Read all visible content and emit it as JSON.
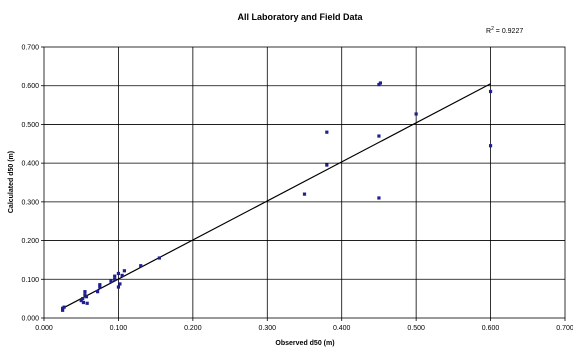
{
  "chart_data": {
    "type": "scatter",
    "title": "All Laboratory and Field Data",
    "xlabel": "Observed d50 (m)",
    "ylabel": "Calculated d50 (m)",
    "xlim": [
      0,
      0.7
    ],
    "ylim": [
      0,
      0.7
    ],
    "x_ticks": [
      "0.000",
      "0.100",
      "0.200",
      "0.300",
      "0.400",
      "0.500",
      "0.600",
      "0.700"
    ],
    "y_ticks": [
      "0.000",
      "0.100",
      "0.200",
      "0.300",
      "0.400",
      "0.500",
      "0.600",
      "0.700"
    ],
    "grid": true,
    "r_squared_label": {
      "prefix": "R",
      "sup": "2",
      "value": " = 0.9227"
    },
    "trendline": {
      "x": [
        0.025,
        0.6
      ],
      "y": [
        0.025,
        0.605
      ]
    },
    "point_color": "#1f1f8f",
    "points": [
      {
        "x": 0.025,
        "y": 0.02
      },
      {
        "x": 0.025,
        "y": 0.025
      },
      {
        "x": 0.027,
        "y": 0.028
      },
      {
        "x": 0.05,
        "y": 0.045
      },
      {
        "x": 0.052,
        "y": 0.05
      },
      {
        "x": 0.053,
        "y": 0.04
      },
      {
        "x": 0.055,
        "y": 0.06
      },
      {
        "x": 0.055,
        "y": 0.068
      },
      {
        "x": 0.057,
        "y": 0.055
      },
      {
        "x": 0.058,
        "y": 0.038
      },
      {
        "x": 0.072,
        "y": 0.068
      },
      {
        "x": 0.075,
        "y": 0.08
      },
      {
        "x": 0.075,
        "y": 0.086
      },
      {
        "x": 0.09,
        "y": 0.095
      },
      {
        "x": 0.095,
        "y": 0.1
      },
      {
        "x": 0.095,
        "y": 0.108
      },
      {
        "x": 0.1,
        "y": 0.08
      },
      {
        "x": 0.1,
        "y": 0.115
      },
      {
        "x": 0.102,
        "y": 0.088
      },
      {
        "x": 0.105,
        "y": 0.11
      },
      {
        "x": 0.108,
        "y": 0.122
      },
      {
        "x": 0.13,
        "y": 0.135
      },
      {
        "x": 0.155,
        "y": 0.155
      },
      {
        "x": 0.35,
        "y": 0.32
      },
      {
        "x": 0.38,
        "y": 0.395
      },
      {
        "x": 0.38,
        "y": 0.48
      },
      {
        "x": 0.45,
        "y": 0.31
      },
      {
        "x": 0.45,
        "y": 0.47
      },
      {
        "x": 0.45,
        "y": 0.603
      },
      {
        "x": 0.452,
        "y": 0.607
      },
      {
        "x": 0.5,
        "y": 0.527
      },
      {
        "x": 0.6,
        "y": 0.445
      },
      {
        "x": 0.6,
        "y": 0.585
      }
    ]
  }
}
